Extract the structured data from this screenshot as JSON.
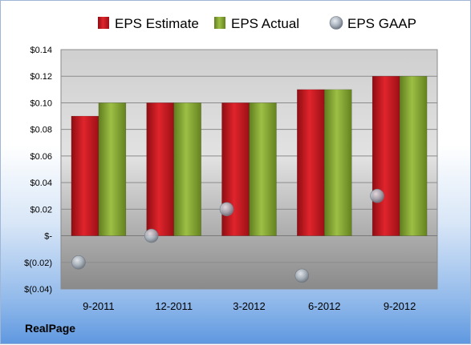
{
  "chart_data": {
    "type": "bar",
    "categories": [
      "9-2011",
      "12-2011",
      "3-2012",
      "6-2012",
      "9-2012"
    ],
    "series": [
      {
        "name": "EPS Estimate",
        "kind": "bar",
        "color": "#c0121b",
        "values": [
          0.09,
          0.1,
          0.1,
          0.11,
          0.12
        ]
      },
      {
        "name": "EPS Actual",
        "kind": "bar",
        "color": "#86a531",
        "values": [
          0.1,
          0.1,
          0.1,
          0.11,
          0.12
        ]
      },
      {
        "name": "EPS GAAP",
        "kind": "scatter",
        "color": "#9aa3ad",
        "values": [
          -0.02,
          0.0,
          0.02,
          -0.03,
          0.03
        ]
      }
    ],
    "ylim": [
      -0.04,
      0.14
    ],
    "yticks": [
      0.14,
      0.12,
      0.1,
      0.08,
      0.06,
      0.04,
      0.02,
      0,
      -0.02,
      -0.04
    ],
    "ytick_labels": [
      "$0.14",
      "$0.12",
      "$0.10",
      "$0.08",
      "$0.06",
      "$0.04",
      "$0.02",
      "$-",
      "$(0.02)",
      "$(0.04)"
    ],
    "grid": true,
    "legend_position": "top"
  },
  "footer": {
    "company": "RealPage"
  }
}
